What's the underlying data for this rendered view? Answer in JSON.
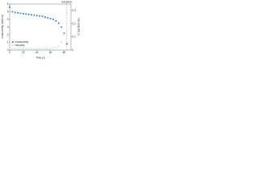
{
  "chart_data": {
    "type": "line",
    "x_label": "Time (s)",
    "y_label": "conductivity (mS/cm)",
    "y2_label": "viscosity (Pa s)",
    "annotation": "transition",
    "annotation_x": 84,
    "x": [
      0,
      4,
      8,
      12,
      16,
      20,
      24,
      28,
      32,
      36,
      40,
      44,
      48,
      52,
      56,
      60,
      64,
      68,
      72,
      76,
      80,
      84
    ],
    "series": [
      {
        "name": "conductivity",
        "color": "#3a86c8",
        "marker": "square",
        "values": [
          5.6,
          5.0,
          4.9,
          4.85,
          4.8,
          4.75,
          4.7,
          4.65,
          4.6,
          4.55,
          4.5,
          4.45,
          4.4,
          4.3,
          4.2,
          4.1,
          4.0,
          3.8,
          3.5,
          3.0,
          2.2,
          0.8
        ]
      },
      {
        "name": "viscosity",
        "color": "#9ccbe8",
        "marker": "circle",
        "axis": "y2",
        "values": [
          0.01,
          0.01,
          0.01,
          0.01,
          0.01,
          0.01,
          0.01,
          0.01,
          0.01,
          0.01,
          0.01,
          0.01,
          0.01,
          0.01,
          0.01,
          0.01,
          0.015,
          0.02,
          0.03,
          0.06,
          0.12,
          0.28
        ]
      }
    ],
    "xlim": [
      0,
      90
    ],
    "xticks": [
      0,
      20,
      40,
      60,
      80
    ],
    "ylim": [
      0,
      6
    ],
    "yticks": [
      0,
      1,
      2,
      3,
      4,
      5,
      6
    ],
    "y2lim": [
      0,
      0.35
    ],
    "y2ticks": [
      0,
      0.1,
      0.2,
      0.3
    ],
    "legend": "lower-left"
  }
}
